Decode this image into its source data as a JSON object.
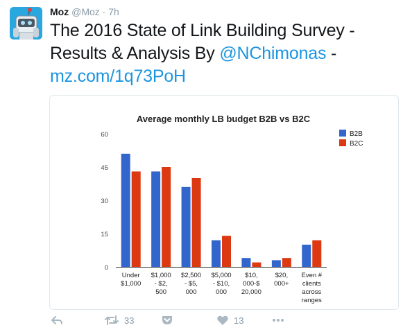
{
  "tweet": {
    "author_name": "Moz",
    "handle": "@Moz",
    "separator": "·",
    "time": "7h",
    "text_part1": "The 2016 State of Link Building Survey - Results & Analysis By ",
    "mention": "@NChimonas",
    "text_part2": " -",
    "url": "mz.com/1q73PoH"
  },
  "actions": {
    "retweet_count": "33",
    "like_count": "13"
  },
  "icons": {
    "reply": "reply-icon",
    "retweet": "retweet-icon",
    "pocket": "pocket-icon",
    "like": "heart-icon",
    "more": "more-dots-icon"
  },
  "chart_data": {
    "type": "bar",
    "title": "Average monthly LB budget B2B vs B2C",
    "categories": [
      [
        "Under",
        "$1,000"
      ],
      [
        "$1,000",
        "- $2,",
        "500"
      ],
      [
        "$2,500",
        "- $5,",
        "000"
      ],
      [
        "$5,000",
        "- $10,",
        "000"
      ],
      [
        "$10,",
        "000-$",
        "20,000"
      ],
      [
        "$20,",
        "000+"
      ],
      [
        "Even #",
        "clients",
        "across",
        "ranges"
      ]
    ],
    "series": [
      {
        "name": "B2B",
        "color": "#3366cc",
        "values": [
          51,
          43,
          36,
          12,
          4,
          3,
          10
        ]
      },
      {
        "name": "B2C",
        "color": "#dc3912",
        "values": [
          43,
          45,
          40,
          14,
          2,
          4,
          12
        ]
      }
    ],
    "yticks": [
      "0",
      "15",
      "30",
      "45",
      "60"
    ],
    "ylim": [
      0,
      60
    ],
    "legend_position": "right",
    "grid": false
  }
}
